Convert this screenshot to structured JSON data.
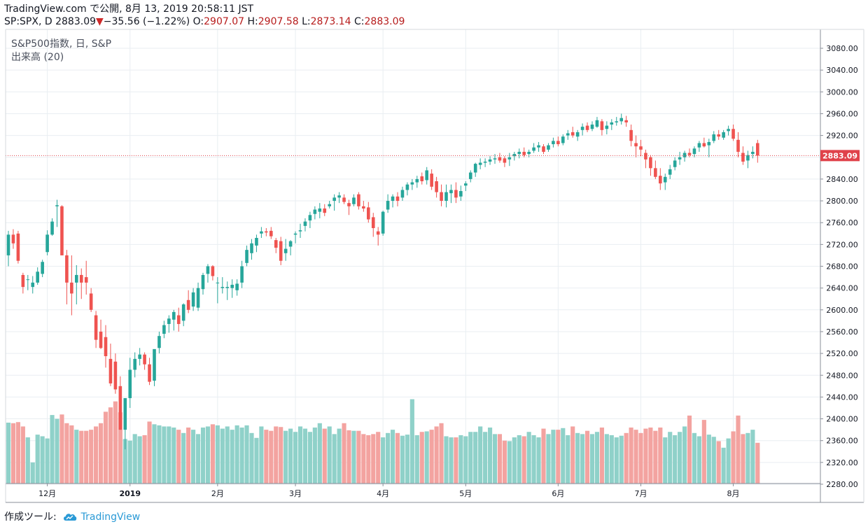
{
  "header": {
    "line1": "TradingView.com で公開, 8月 13, 2019 20:58:11 JST",
    "symbol": "SP:SPX, D",
    "last": "2883.09",
    "change": "−35.56 (−1.22%)",
    "o_label": "O:",
    "o_val": "2907.07",
    "h_label": "H:",
    "h_val": "2907.58",
    "l_label": "L:",
    "l_val": "2873.14",
    "c_label": "C:",
    "c_val": "2883.09"
  },
  "legend": {
    "series": "S&P500指数, 日, S&P",
    "volume": "出来高 (20)"
  },
  "footer": {
    "prefix": "作成ツール:",
    "brand": "TradingView"
  },
  "colors": {
    "up": "#26a69a",
    "down": "#ef5350",
    "vol_up": "#8fd1c9",
    "vol_down": "#f3a3a0",
    "grid": "#e9eef2",
    "price_line": "#e0424a"
  },
  "chart_data": {
    "type": "candlestick",
    "title": "S&P500指数, 日, S&P",
    "ylim": [
      2280,
      3100
    ],
    "y_ticks": [
      "3080.00",
      "3040.00",
      "3000.00",
      "2960.00",
      "2920.00",
      "2880.00",
      "2840.00",
      "2800.00",
      "2760.00",
      "2720.00",
      "2680.00",
      "2640.00",
      "2600.00",
      "2560.00",
      "2520.00",
      "2480.00",
      "2440.00",
      "2400.00",
      "2360.00",
      "2320.00",
      "2280.00"
    ],
    "last_price": 2883.09,
    "last_price_label": "2883.09",
    "x_labels": [
      "12月",
      "2019",
      "2月",
      "3月",
      "4月",
      "5月",
      "6月",
      "7月",
      "8月"
    ],
    "x_label_index": [
      8,
      25,
      43,
      59,
      77,
      94,
      113,
      130,
      149
    ],
    "volume_panel": {
      "series": "出来高 (20)",
      "ylim": [
        2280,
        2440
      ]
    },
    "candles": [
      {
        "o": 2700,
        "h": 2745,
        "l": 2680,
        "c": 2738,
        "v": 2393
      },
      {
        "o": 2738,
        "h": 2748,
        "l": 2712,
        "c": 2722,
        "v": 2392
      },
      {
        "o": 2740,
        "h": 2745,
        "l": 2685,
        "c": 2690,
        "v": 2394
      },
      {
        "o": 2664,
        "h": 2668,
        "l": 2630,
        "c": 2642,
        "v": 2386
      },
      {
        "o": 2656,
        "h": 2664,
        "l": 2636,
        "c": 2656,
        "v": 2366
      },
      {
        "o": 2642,
        "h": 2662,
        "l": 2630,
        "c": 2650,
        "v": 2320
      },
      {
        "o": 2650,
        "h": 2678,
        "l": 2646,
        "c": 2670,
        "v": 2371
      },
      {
        "o": 2666,
        "h": 2692,
        "l": 2660,
        "c": 2688,
        "v": 2368
      },
      {
        "o": 2706,
        "h": 2746,
        "l": 2700,
        "c": 2738,
        "v": 2364
      },
      {
        "o": 2738,
        "h": 2768,
        "l": 2736,
        "c": 2762,
        "v": 2407
      },
      {
        "o": 2790,
        "h": 2802,
        "l": 2752,
        "c": 2792,
        "v": 2400
      },
      {
        "o": 2790,
        "h": 2792,
        "l": 2700,
        "c": 2700,
        "v": 2408
      },
      {
        "o": 2700,
        "h": 2710,
        "l": 2610,
        "c": 2650,
        "v": 2392
      },
      {
        "o": 2650,
        "h": 2700,
        "l": 2590,
        "c": 2630,
        "v": 2388
      },
      {
        "o": 2650,
        "h": 2682,
        "l": 2610,
        "c": 2664,
        "v": 2380
      },
      {
        "o": 2664,
        "h": 2676,
        "l": 2620,
        "c": 2650,
        "v": 2378
      },
      {
        "o": 2660,
        "h": 2690,
        "l": 2628,
        "c": 2650,
        "v": 2378
      },
      {
        "o": 2630,
        "h": 2640,
        "l": 2596,
        "c": 2600,
        "v": 2380
      },
      {
        "o": 2590,
        "h": 2598,
        "l": 2530,
        "c": 2545,
        "v": 2386
      },
      {
        "o": 2560,
        "h": 2582,
        "l": 2528,
        "c": 2530,
        "v": 2392
      },
      {
        "o": 2550,
        "h": 2572,
        "l": 2494,
        "c": 2515,
        "v": 2413
      },
      {
        "o": 2510,
        "h": 2538,
        "l": 2460,
        "c": 2465,
        "v": 2421
      },
      {
        "o": 2505,
        "h": 2520,
        "l": 2446,
        "c": 2454,
        "v": 2432
      },
      {
        "o": 2460,
        "h": 2478,
        "l": 2380,
        "c": 2380,
        "v": 2412
      },
      {
        "o": 2380,
        "h": 2438,
        "l": 2344,
        "c": 2438,
        "v": 2363
      },
      {
        "o": 2438,
        "h": 2512,
        "l": 2420,
        "c": 2490,
        "v": 2360
      },
      {
        "o": 2490,
        "h": 2522,
        "l": 2476,
        "c": 2510,
        "v": 2372
      },
      {
        "o": 2510,
        "h": 2530,
        "l": 2498,
        "c": 2518,
        "v": 2368
      },
      {
        "o": 2518,
        "h": 2522,
        "l": 2490,
        "c": 2500,
        "v": 2370
      },
      {
        "o": 2500,
        "h": 2512,
        "l": 2462,
        "c": 2468,
        "v": 2395
      },
      {
        "o": 2470,
        "h": 2520,
        "l": 2460,
        "c": 2528,
        "v": 2390
      },
      {
        "o": 2530,
        "h": 2560,
        "l": 2520,
        "c": 2552,
        "v": 2388
      },
      {
        "o": 2556,
        "h": 2580,
        "l": 2548,
        "c": 2572,
        "v": 2386
      },
      {
        "o": 2574,
        "h": 2590,
        "l": 2558,
        "c": 2584,
        "v": 2386
      },
      {
        "o": 2582,
        "h": 2600,
        "l": 2562,
        "c": 2596,
        "v": 2384
      },
      {
        "o": 2590,
        "h": 2604,
        "l": 2560,
        "c": 2574,
        "v": 2380
      },
      {
        "o": 2580,
        "h": 2612,
        "l": 2570,
        "c": 2610,
        "v": 2374
      },
      {
        "o": 2618,
        "h": 2636,
        "l": 2594,
        "c": 2600,
        "v": 2384
      },
      {
        "o": 2606,
        "h": 2640,
        "l": 2598,
        "c": 2632,
        "v": 2380
      },
      {
        "o": 2604,
        "h": 2650,
        "l": 2598,
        "c": 2640,
        "v": 2372
      },
      {
        "o": 2638,
        "h": 2668,
        "l": 2628,
        "c": 2664,
        "v": 2384
      },
      {
        "o": 2666,
        "h": 2684,
        "l": 2650,
        "c": 2680,
        "v": 2386
      },
      {
        "o": 2680,
        "h": 2682,
        "l": 2654,
        "c": 2662,
        "v": 2390
      },
      {
        "o": 2650,
        "h": 2660,
        "l": 2612,
        "c": 2650,
        "v": 2388
      },
      {
        "o": 2640,
        "h": 2660,
        "l": 2630,
        "c": 2642,
        "v": 2382
      },
      {
        "o": 2640,
        "h": 2652,
        "l": 2618,
        "c": 2642,
        "v": 2386
      },
      {
        "o": 2640,
        "h": 2656,
        "l": 2622,
        "c": 2646,
        "v": 2380
      },
      {
        "o": 2636,
        "h": 2656,
        "l": 2626,
        "c": 2648,
        "v": 2388
      },
      {
        "o": 2650,
        "h": 2690,
        "l": 2640,
        "c": 2680,
        "v": 2384
      },
      {
        "o": 2686,
        "h": 2718,
        "l": 2680,
        "c": 2710,
        "v": 2388
      },
      {
        "o": 2704,
        "h": 2730,
        "l": 2692,
        "c": 2722,
        "v": 2374
      },
      {
        "o": 2718,
        "h": 2738,
        "l": 2706,
        "c": 2732,
        "v": 2365
      },
      {
        "o": 2740,
        "h": 2752,
        "l": 2732,
        "c": 2744,
        "v": 2386
      },
      {
        "o": 2744,
        "h": 2750,
        "l": 2735,
        "c": 2742,
        "v": 2380
      },
      {
        "o": 2745,
        "h": 2752,
        "l": 2730,
        "c": 2735,
        "v": 2378
      },
      {
        "o": 2728,
        "h": 2732,
        "l": 2704,
        "c": 2714,
        "v": 2386
      },
      {
        "o": 2726,
        "h": 2734,
        "l": 2682,
        "c": 2690,
        "v": 2385
      },
      {
        "o": 2704,
        "h": 2730,
        "l": 2690,
        "c": 2712,
        "v": 2378
      },
      {
        "o": 2716,
        "h": 2728,
        "l": 2700,
        "c": 2726,
        "v": 2382
      },
      {
        "o": 2738,
        "h": 2744,
        "l": 2722,
        "c": 2740,
        "v": 2376
      },
      {
        "o": 2744,
        "h": 2758,
        "l": 2732,
        "c": 2746,
        "v": 2386
      },
      {
        "o": 2754,
        "h": 2768,
        "l": 2744,
        "c": 2762,
        "v": 2382
      },
      {
        "o": 2764,
        "h": 2780,
        "l": 2750,
        "c": 2774,
        "v": 2376
      },
      {
        "o": 2776,
        "h": 2790,
        "l": 2766,
        "c": 2784,
        "v": 2384
      },
      {
        "o": 2780,
        "h": 2796,
        "l": 2768,
        "c": 2786,
        "v": 2392
      },
      {
        "o": 2786,
        "h": 2794,
        "l": 2772,
        "c": 2778,
        "v": 2382
      },
      {
        "o": 2790,
        "h": 2800,
        "l": 2786,
        "c": 2794,
        "v": 2386
      },
      {
        "o": 2800,
        "h": 2812,
        "l": 2782,
        "c": 2806,
        "v": 2372
      },
      {
        "o": 2806,
        "h": 2816,
        "l": 2796,
        "c": 2810,
        "v": 2382
      },
      {
        "o": 2806,
        "h": 2812,
        "l": 2794,
        "c": 2798,
        "v": 2392
      },
      {
        "o": 2796,
        "h": 2802,
        "l": 2774,
        "c": 2790,
        "v": 2379
      },
      {
        "o": 2794,
        "h": 2812,
        "l": 2790,
        "c": 2806,
        "v": 2378
      },
      {
        "o": 2812,
        "h": 2816,
        "l": 2784,
        "c": 2790,
        "v": 2378
      },
      {
        "o": 2790,
        "h": 2800,
        "l": 2780,
        "c": 2786,
        "v": 2372
      },
      {
        "o": 2788,
        "h": 2798,
        "l": 2760,
        "c": 2766,
        "v": 2370
      },
      {
        "o": 2770,
        "h": 2778,
        "l": 2734,
        "c": 2750,
        "v": 2372
      },
      {
        "o": 2744,
        "h": 2752,
        "l": 2718,
        "c": 2738,
        "v": 2376
      },
      {
        "o": 2740,
        "h": 2782,
        "l": 2736,
        "c": 2780,
        "v": 2366
      },
      {
        "o": 2784,
        "h": 2812,
        "l": 2778,
        "c": 2800,
        "v": 2374
      },
      {
        "o": 2800,
        "h": 2812,
        "l": 2788,
        "c": 2808,
        "v": 2380
      },
      {
        "o": 2808,
        "h": 2816,
        "l": 2790,
        "c": 2800,
        "v": 2374
      },
      {
        "o": 2806,
        "h": 2826,
        "l": 2800,
        "c": 2820,
        "v": 2369
      },
      {
        "o": 2820,
        "h": 2834,
        "l": 2810,
        "c": 2830,
        "v": 2371
      },
      {
        "o": 2830,
        "h": 2840,
        "l": 2820,
        "c": 2834,
        "v": 2436
      },
      {
        "o": 2834,
        "h": 2846,
        "l": 2824,
        "c": 2840,
        "v": 2370
      },
      {
        "o": 2845,
        "h": 2852,
        "l": 2830,
        "c": 2836,
        "v": 2376
      },
      {
        "o": 2838,
        "h": 2862,
        "l": 2830,
        "c": 2856,
        "v": 2377
      },
      {
        "o": 2850,
        "h": 2858,
        "l": 2820,
        "c": 2826,
        "v": 2380
      },
      {
        "o": 2836,
        "h": 2844,
        "l": 2806,
        "c": 2816,
        "v": 2386
      },
      {
        "o": 2816,
        "h": 2830,
        "l": 2790,
        "c": 2800,
        "v": 2392
      },
      {
        "o": 2800,
        "h": 2830,
        "l": 2788,
        "c": 2816,
        "v": 2368
      },
      {
        "o": 2814,
        "h": 2830,
        "l": 2796,
        "c": 2820,
        "v": 2366
      },
      {
        "o": 2820,
        "h": 2834,
        "l": 2796,
        "c": 2806,
        "v": 2366
      },
      {
        "o": 2808,
        "h": 2828,
        "l": 2800,
        "c": 2818,
        "v": 2370
      },
      {
        "o": 2828,
        "h": 2836,
        "l": 2818,
        "c": 2832,
        "v": 2368
      },
      {
        "o": 2840,
        "h": 2856,
        "l": 2834,
        "c": 2852,
        "v": 2376
      },
      {
        "o": 2852,
        "h": 2870,
        "l": 2844,
        "c": 2868,
        "v": 2376
      },
      {
        "o": 2866,
        "h": 2878,
        "l": 2858,
        "c": 2870,
        "v": 2386
      },
      {
        "o": 2870,
        "h": 2878,
        "l": 2862,
        "c": 2872,
        "v": 2376
      },
      {
        "o": 2872,
        "h": 2882,
        "l": 2866,
        "c": 2876,
        "v": 2384
      },
      {
        "o": 2876,
        "h": 2886,
        "l": 2868,
        "c": 2878,
        "v": 2372
      },
      {
        "o": 2880,
        "h": 2888,
        "l": 2870,
        "c": 2874,
        "v": 2372
      },
      {
        "o": 2878,
        "h": 2882,
        "l": 2862,
        "c": 2870,
        "v": 2360
      },
      {
        "o": 2876,
        "h": 2888,
        "l": 2864,
        "c": 2880,
        "v": 2359
      },
      {
        "o": 2882,
        "h": 2890,
        "l": 2874,
        "c": 2886,
        "v": 2366
      },
      {
        "o": 2886,
        "h": 2896,
        "l": 2878,
        "c": 2890,
        "v": 2370
      },
      {
        "o": 2890,
        "h": 2898,
        "l": 2880,
        "c": 2884,
        "v": 2368
      },
      {
        "o": 2886,
        "h": 2894,
        "l": 2880,
        "c": 2890,
        "v": 2376
      },
      {
        "o": 2892,
        "h": 2906,
        "l": 2888,
        "c": 2898,
        "v": 2370
      },
      {
        "o": 2898,
        "h": 2908,
        "l": 2890,
        "c": 2902,
        "v": 2366
      },
      {
        "o": 2900,
        "h": 2904,
        "l": 2886,
        "c": 2890,
        "v": 2382
      },
      {
        "o": 2894,
        "h": 2906,
        "l": 2890,
        "c": 2902,
        "v": 2372
      },
      {
        "o": 2904,
        "h": 2916,
        "l": 2898,
        "c": 2910,
        "v": 2380
      },
      {
        "o": 2910,
        "h": 2918,
        "l": 2900,
        "c": 2904,
        "v": 2380
      },
      {
        "o": 2906,
        "h": 2922,
        "l": 2902,
        "c": 2918,
        "v": 2383
      },
      {
        "o": 2920,
        "h": 2930,
        "l": 2912,
        "c": 2924,
        "v": 2370
      },
      {
        "o": 2926,
        "h": 2936,
        "l": 2916,
        "c": 2920,
        "v": 2386
      },
      {
        "o": 2918,
        "h": 2930,
        "l": 2910,
        "c": 2926,
        "v": 2374
      },
      {
        "o": 2930,
        "h": 2942,
        "l": 2920,
        "c": 2936,
        "v": 2372
      },
      {
        "o": 2938,
        "h": 2944,
        "l": 2926,
        "c": 2930,
        "v": 2378
      },
      {
        "o": 2932,
        "h": 2946,
        "l": 2928,
        "c": 2940,
        "v": 2372
      },
      {
        "o": 2936,
        "h": 2954,
        "l": 2934,
        "c": 2948,
        "v": 2376
      },
      {
        "o": 2946,
        "h": 2950,
        "l": 2920,
        "c": 2930,
        "v": 2384
      },
      {
        "o": 2932,
        "h": 2946,
        "l": 2922,
        "c": 2938,
        "v": 2372
      },
      {
        "o": 2940,
        "h": 2950,
        "l": 2930,
        "c": 2944,
        "v": 2370
      },
      {
        "o": 2944,
        "h": 2954,
        "l": 2938,
        "c": 2946,
        "v": 2366
      },
      {
        "o": 2946,
        "h": 2960,
        "l": 2940,
        "c": 2952,
        "v": 2369
      },
      {
        "o": 2948,
        "h": 2956,
        "l": 2936,
        "c": 2944,
        "v": 2374
      },
      {
        "o": 2930,
        "h": 2940,
        "l": 2900,
        "c": 2910,
        "v": 2384
      },
      {
        "o": 2906,
        "h": 2920,
        "l": 2880,
        "c": 2900,
        "v": 2380
      },
      {
        "o": 2900,
        "h": 2912,
        "l": 2882,
        "c": 2894,
        "v": 2374
      },
      {
        "o": 2888,
        "h": 2894,
        "l": 2860,
        "c": 2876,
        "v": 2382
      },
      {
        "o": 2880,
        "h": 2884,
        "l": 2846,
        "c": 2860,
        "v": 2384
      },
      {
        "o": 2860,
        "h": 2874,
        "l": 2840,
        "c": 2844,
        "v": 2378
      },
      {
        "o": 2846,
        "h": 2860,
        "l": 2820,
        "c": 2832,
        "v": 2384
      },
      {
        "o": 2834,
        "h": 2850,
        "l": 2820,
        "c": 2844,
        "v": 2366
      },
      {
        "o": 2848,
        "h": 2866,
        "l": 2840,
        "c": 2858,
        "v": 2376
      },
      {
        "o": 2862,
        "h": 2880,
        "l": 2856,
        "c": 2874,
        "v": 2370
      },
      {
        "o": 2876,
        "h": 2890,
        "l": 2866,
        "c": 2880,
        "v": 2376
      },
      {
        "o": 2880,
        "h": 2892,
        "l": 2872,
        "c": 2888,
        "v": 2386
      },
      {
        "o": 2888,
        "h": 2896,
        "l": 2880,
        "c": 2884,
        "v": 2406
      },
      {
        "o": 2886,
        "h": 2900,
        "l": 2880,
        "c": 2896,
        "v": 2374
      },
      {
        "o": 2898,
        "h": 2910,
        "l": 2890,
        "c": 2906,
        "v": 2368
      },
      {
        "o": 2906,
        "h": 2916,
        "l": 2898,
        "c": 2900,
        "v": 2398
      },
      {
        "o": 2902,
        "h": 2914,
        "l": 2880,
        "c": 2908,
        "v": 2371
      },
      {
        "o": 2910,
        "h": 2928,
        "l": 2906,
        "c": 2922,
        "v": 2367
      },
      {
        "o": 2922,
        "h": 2930,
        "l": 2912,
        "c": 2918,
        "v": 2359
      },
      {
        "o": 2916,
        "h": 2930,
        "l": 2912,
        "c": 2926,
        "v": 2347
      },
      {
        "o": 2928,
        "h": 2938,
        "l": 2920,
        "c": 2932,
        "v": 2364
      },
      {
        "o": 2932,
        "h": 2940,
        "l": 2910,
        "c": 2914,
        "v": 2377
      },
      {
        "o": 2912,
        "h": 2926,
        "l": 2880,
        "c": 2890,
        "v": 2406
      },
      {
        "o": 2888,
        "h": 2900,
        "l": 2866,
        "c": 2872,
        "v": 2372
      },
      {
        "o": 2874,
        "h": 2892,
        "l": 2860,
        "c": 2884,
        "v": 2374
      },
      {
        "o": 2886,
        "h": 2900,
        "l": 2878,
        "c": 2890,
        "v": 2380
      },
      {
        "o": 2906,
        "h": 2912,
        "l": 2870,
        "c": 2883,
        "v": 2356
      }
    ]
  }
}
